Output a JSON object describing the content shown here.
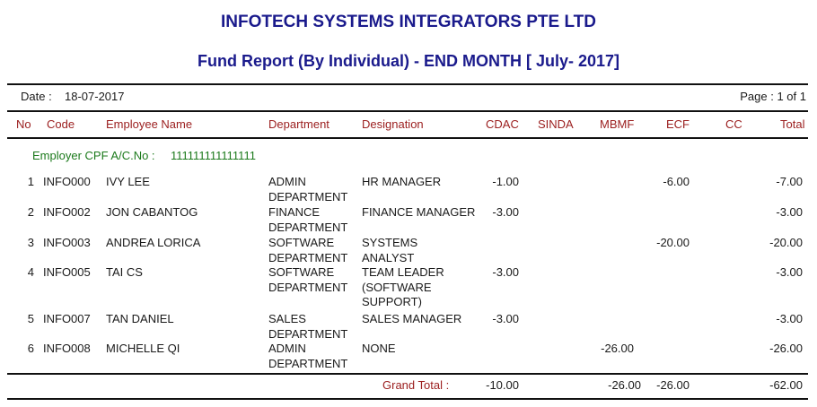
{
  "report": {
    "company": "INFOTECH SYSTEMS INTEGRATORS PTE LTD",
    "title": "Fund Report (By Individual) - END MONTH  [ July- 2017]",
    "date_label": "Date :",
    "date_value": "18-07-2017",
    "page_label": "Page : 1 of 1"
  },
  "columns": {
    "no": "No",
    "code": "Code",
    "name": "Employee Name",
    "department": "Department",
    "designation": "Designation",
    "cdac": "CDAC",
    "sinda": "SINDA",
    "mbmf": "MBMF",
    "ecf": "ECF",
    "cc": "CC",
    "total": "Total"
  },
  "employer": {
    "label": "Employer CPF A/C.No :",
    "value": "111111111111111"
  },
  "rows": [
    {
      "no": "1",
      "code": "INFO000",
      "name": "IVY LEE",
      "dept1": "ADMIN",
      "dept2": "DEPARTMENT",
      "desig1": "HR MANAGER",
      "desig2": "",
      "desig3": "",
      "cdac": "-1.00",
      "sinda": "",
      "mbmf": "",
      "ecf": "-6.00",
      "cc": "",
      "total": "-7.00"
    },
    {
      "no": "2",
      "code": "INFO002",
      "name": "JON CABANTOG",
      "dept1": "FINANCE",
      "dept2": "DEPARTMENT",
      "desig1": "FINANCE MANAGER",
      "desig2": "",
      "desig3": "",
      "cdac": "-3.00",
      "sinda": "",
      "mbmf": "",
      "ecf": "",
      "cc": "",
      "total": "-3.00"
    },
    {
      "no": "3",
      "code": "INFO003",
      "name": "ANDREA LORICA",
      "dept1": "SOFTWARE",
      "dept2": "DEPARTMENT",
      "desig1": "SYSTEMS",
      "desig2": "ANALYST",
      "desig3": "",
      "cdac": "",
      "sinda": "",
      "mbmf": "",
      "ecf": "-20.00",
      "cc": "",
      "total": "-20.00"
    },
    {
      "no": "4",
      "code": "INFO005",
      "name": "TAI CS",
      "dept1": "SOFTWARE",
      "dept2": "DEPARTMENT",
      "desig1": "TEAM LEADER",
      "desig2": "(SOFTWARE",
      "desig3": "SUPPORT)",
      "cdac": "-3.00",
      "sinda": "",
      "mbmf": "",
      "ecf": "",
      "cc": "",
      "total": "-3.00"
    },
    {
      "no": "5",
      "code": "INFO007",
      "name": "TAN DANIEL",
      "dept1": "SALES",
      "dept2": "DEPARTMENT",
      "desig1": "SALES MANAGER",
      "desig2": "",
      "desig3": "",
      "cdac": "-3.00",
      "sinda": "",
      "mbmf": "",
      "ecf": "",
      "cc": "",
      "total": "-3.00"
    },
    {
      "no": "6",
      "code": "INFO008",
      "name": "MICHELLE QI",
      "dept1": "ADMIN",
      "dept2": "DEPARTMENT",
      "desig1": "NONE",
      "desig2": "",
      "desig3": "",
      "cdac": "",
      "sinda": "",
      "mbmf": "-26.00",
      "ecf": "",
      "cc": "",
      "total": "-26.00"
    }
  ],
  "grand_total": {
    "label": "Grand Total :",
    "cdac": "-10.00",
    "mbmf": "-26.00",
    "ecf": "-26.00",
    "total": "-62.00"
  },
  "colors": {
    "title": "#1a1a8c",
    "header": "#9c2020",
    "employer": "#1c7a1c"
  }
}
